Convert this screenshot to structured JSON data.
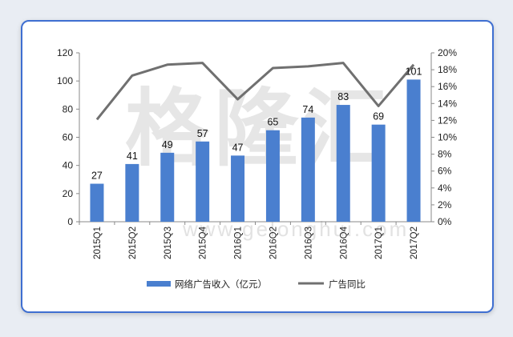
{
  "chart_data": {
    "type": "bar",
    "categories": [
      "2015Q1",
      "2015Q2",
      "2015Q3",
      "2015Q4",
      "2016Q1",
      "2016Q2",
      "2016Q3",
      "2016Q4",
      "2017Q1",
      "2017Q2"
    ],
    "series": [
      {
        "name": "网络广告收入（亿元）",
        "type": "bar",
        "axis": "left",
        "color": "#4a7fcf",
        "values": [
          27,
          41,
          49,
          57,
          47,
          65,
          74,
          83,
          69,
          101
        ]
      },
      {
        "name": "广告同比",
        "type": "line",
        "axis": "right",
        "color": "#707070",
        "values": [
          12.1,
          17.3,
          18.6,
          18.8,
          14.5,
          18.2,
          18.4,
          18.8,
          13.7,
          18.6
        ]
      }
    ],
    "ylim_left": [
      0,
      120
    ],
    "yticks_left": [
      "0",
      "20",
      "40",
      "60",
      "80",
      "100",
      "120"
    ],
    "ylim_right": [
      0,
      20
    ],
    "yticks_right": [
      "0%",
      "2%",
      "4%",
      "6%",
      "8%",
      "10%",
      "12%",
      "14%",
      "16%",
      "18%",
      "20%"
    ],
    "grid": false,
    "legend_position": "bottom"
  },
  "watermark": {
    "main": "格隆汇",
    "sub": "www.gelonghui.com"
  }
}
